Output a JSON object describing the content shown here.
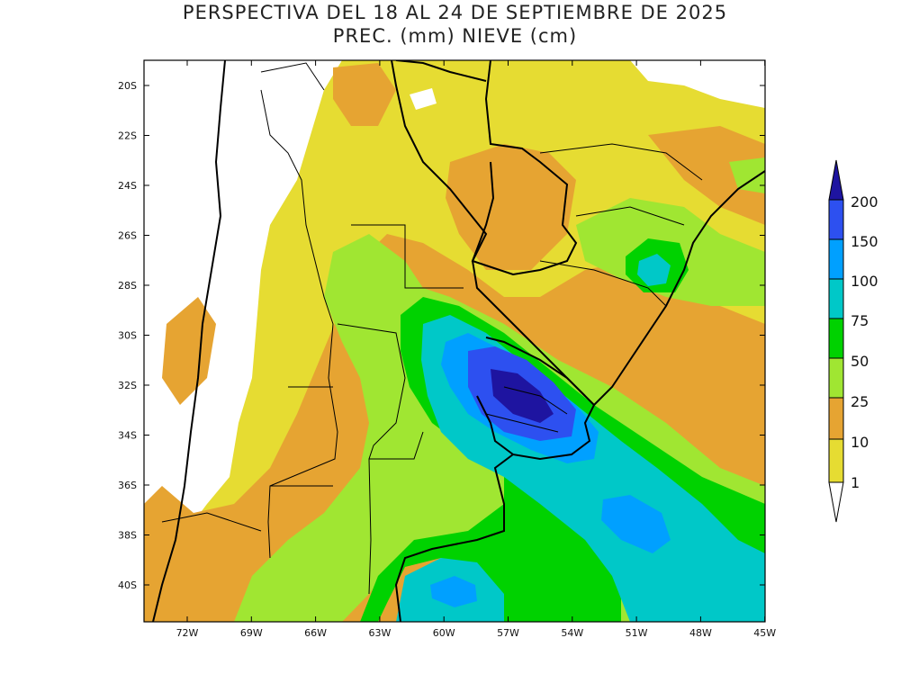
{
  "title": {
    "line1": "PERSPECTIVA DEL 18 AL 24 DE SEPTIEMBRE DE 2025",
    "line2": "PREC. (mm) NIEVE (cm)"
  },
  "axes": {
    "lat_labels": [
      "20S",
      "22S",
      "24S",
      "26S",
      "28S",
      "30S",
      "32S",
      "34S",
      "36S",
      "38S",
      "40S"
    ],
    "lon_labels": [
      "72W",
      "69W",
      "66W",
      "63W",
      "60W",
      "57W",
      "54W",
      "51W",
      "48W",
      "45W"
    ]
  },
  "colorbar": {
    "labels": [
      "1",
      "10",
      "25",
      "50",
      "75",
      "100",
      "150",
      "200"
    ],
    "colors": {
      "lt1": "#ffffff",
      "c1": "#e6dc32",
      "c10": "#e6a432",
      "c25": "#a0e632",
      "c50": "#00d200",
      "c75": "#00c8c8",
      "c100": "#00a0ff",
      "c150": "#2d50f0",
      "c200": "#1e14a0"
    }
  }
}
